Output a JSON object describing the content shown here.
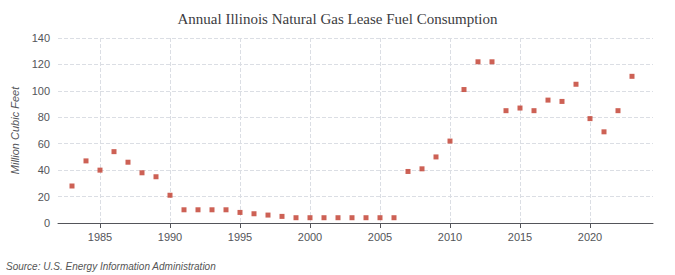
{
  "chart_data": {
    "type": "scatter",
    "title": "Annual Illinois Natural Gas Lease Fuel Consumption",
    "ylabel": "Million Cubic Feet",
    "annotation": "Source: U.S. Energy Information Administration",
    "x": [
      1983,
      1984,
      1985,
      1986,
      1987,
      1988,
      1989,
      1990,
      1991,
      1992,
      1993,
      1994,
      1995,
      1996,
      1997,
      1998,
      1999,
      2000,
      2001,
      2002,
      2003,
      2004,
      2005,
      2006,
      2007,
      2008,
      2009,
      2010,
      2011,
      2012,
      2013,
      2014,
      2015,
      2016,
      2017,
      2018,
      2019,
      2020,
      2021,
      2022,
      2023
    ],
    "values": [
      28,
      47,
      40,
      54,
      46,
      38,
      35,
      21,
      10,
      10,
      10,
      10,
      8,
      7,
      6,
      5,
      4,
      4,
      4,
      4,
      4,
      4,
      4,
      4,
      39,
      41,
      50,
      62,
      101,
      122,
      122,
      85,
      87,
      85,
      93,
      92,
      105,
      79,
      69,
      85,
      111
    ],
    "color": "#c0392b",
    "marker": "square",
    "xlim": [
      1982,
      2024.5
    ],
    "ylim": [
      0,
      140
    ],
    "xticks": [
      1985,
      1990,
      1995,
      2000,
      2005,
      2010,
      2015,
      2020
    ],
    "yticks": [
      0,
      20,
      40,
      60,
      80,
      100,
      120,
      140
    ],
    "grid": true
  }
}
